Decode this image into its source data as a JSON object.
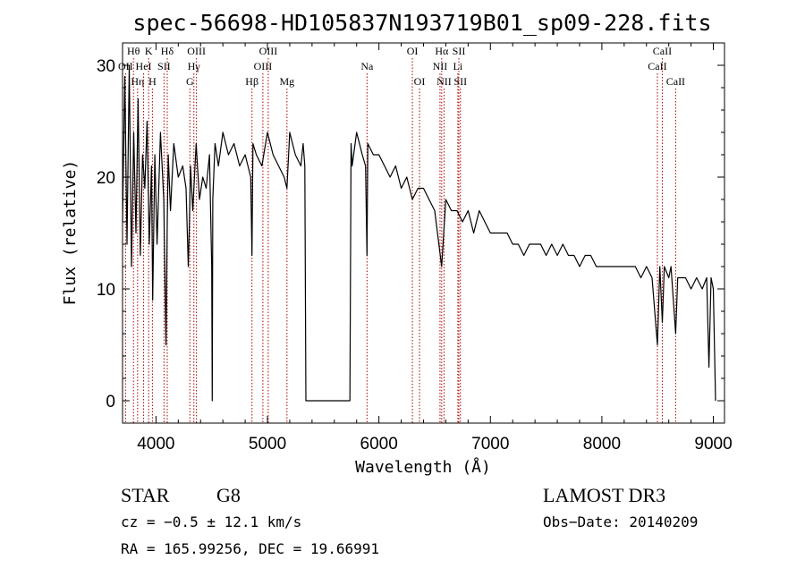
{
  "chart_data": {
    "type": "line",
    "title": "spec-56698-HD105837N193719B01_sp09-228.fits",
    "xlabel": "Wavelength (Å)",
    "ylabel": "Flux (relative)",
    "xlim": [
      3700,
      9100
    ],
    "ylim": [
      -2,
      32
    ],
    "x_ticks": [
      4000,
      5000,
      6000,
      7000,
      8000,
      9000
    ],
    "y_ticks": [
      0,
      10,
      20,
      30
    ],
    "grid": false,
    "series": [
      {
        "name": "flux",
        "x": [
          3700,
          3720,
          3740,
          3760,
          3780,
          3800,
          3820,
          3840,
          3860,
          3880,
          3900,
          3920,
          3940,
          3960,
          3970,
          3990,
          4010,
          4040,
          4070,
          4090,
          4101,
          4110,
          4130,
          4160,
          4200,
          4240,
          4270,
          4290,
          4300,
          4310,
          4330,
          4360,
          4390,
          4420,
          4450,
          4480,
          4500,
          4505,
          4510,
          4530,
          4560,
          4600,
          4650,
          4700,
          4750,
          4800,
          4850,
          4861,
          4870,
          4900,
          4950,
          5000,
          5050,
          5100,
          5150,
          5175,
          5200,
          5250,
          5300,
          5320,
          5335,
          5345,
          5500,
          5600,
          5700,
          5740,
          5750,
          5760,
          5800,
          5850,
          5880,
          5893,
          5900,
          5950,
          6000,
          6050,
          6100,
          6150,
          6200,
          6250,
          6300,
          6350,
          6400,
          6450,
          6500,
          6563,
          6600,
          6650,
          6700,
          6750,
          6800,
          6850,
          6900,
          6950,
          7000,
          7050,
          7100,
          7150,
          7200,
          7250,
          7300,
          7350,
          7400,
          7450,
          7500,
          7550,
          7600,
          7650,
          7700,
          7750,
          7800,
          7850,
          7900,
          7950,
          8000,
          8050,
          8100,
          8150,
          8200,
          8250,
          8300,
          8350,
          8400,
          8450,
          8498,
          8520,
          8542,
          8560,
          8600,
          8620,
          8662,
          8680,
          8700,
          8750,
          8800,
          8850,
          8900,
          8940,
          8960,
          8980,
          9000,
          9020
        ],
        "y": [
          16,
          29,
          14,
          30,
          12,
          24,
          15,
          27,
          13,
          22,
          19,
          25,
          14,
          21,
          9,
          22,
          14,
          24,
          18,
          5,
          16,
          22,
          17,
          23,
          20,
          21,
          19,
          12,
          16,
          21,
          17,
          23,
          18,
          20,
          19,
          22,
          12,
          0,
          18,
          23,
          21,
          24,
          22,
          23,
          21,
          22,
          20,
          13,
          23,
          22,
          21,
          24,
          22,
          21,
          20,
          19,
          24,
          22,
          21,
          23,
          21,
          0,
          0,
          0,
          0,
          0,
          23,
          21,
          24,
          22,
          21,
          13,
          23,
          22,
          22,
          21,
          20,
          21,
          19,
          20,
          18,
          19,
          19,
          18,
          17,
          12,
          18,
          17,
          17,
          16,
          17,
          15,
          17,
          16,
          15,
          15,
          15,
          15,
          14,
          14,
          13,
          14,
          14,
          14,
          13,
          14,
          13,
          14,
          13,
          13,
          12,
          13,
          13,
          12,
          12,
          12,
          12,
          12,
          12,
          12,
          12,
          11,
          12,
          11,
          5,
          12,
          7,
          12,
          11,
          12,
          6,
          11,
          11,
          11,
          10,
          11,
          10,
          11,
          3,
          11,
          10,
          0
        ]
      }
    ],
    "spectral_lines": [
      {
        "name": "OII",
        "wavelength": 3727,
        "row": 2
      },
      {
        "name": "Hθ",
        "wavelength": 3798,
        "row": 1
      },
      {
        "name": "Hη",
        "wavelength": 3835,
        "row": 3
      },
      {
        "name": "HeI",
        "wavelength": 3889,
        "row": 2
      },
      {
        "name": "K",
        "wavelength": 3934,
        "row": 1
      },
      {
        "name": "H",
        "wavelength": 3968,
        "row": 3
      },
      {
        "name": "SII",
        "wavelength": 4072,
        "row": 2
      },
      {
        "name": "Hδ",
        "wavelength": 4101,
        "row": 1
      },
      {
        "name": "OIII",
        "wavelength": 4363,
        "row": 1
      },
      {
        "name": "Hγ",
        "wavelength": 4340,
        "row": 2
      },
      {
        "name": "G",
        "wavelength": 4304,
        "row": 3
      },
      {
        "name": "Hβ",
        "wavelength": 4861,
        "row": 3
      },
      {
        "name": "OIII",
        "wavelength": 4959,
        "row": 2
      },
      {
        "name": "OIII",
        "wavelength": 5007,
        "row": 1
      },
      {
        "name": "Mg",
        "wavelength": 5175,
        "row": 3
      },
      {
        "name": "Na",
        "wavelength": 5893,
        "row": 2
      },
      {
        "name": "OI",
        "wavelength": 6300,
        "row": 1
      },
      {
        "name": "OI",
        "wavelength": 6364,
        "row": 3
      },
      {
        "name": "Hα",
        "wavelength": 6563,
        "row": 1
      },
      {
        "name": "NII",
        "wavelength": 6548,
        "row": 2
      },
      {
        "name": "NII",
        "wavelength": 6584,
        "row": 3
      },
      {
        "name": "SII",
        "wavelength": 6717,
        "row": 1
      },
      {
        "name": "Li",
        "wavelength": 6708,
        "row": 2
      },
      {
        "name": "SII",
        "wavelength": 6731,
        "row": 3
      },
      {
        "name": "CaII",
        "wavelength": 8542,
        "row": 1
      },
      {
        "name": "CaII",
        "wavelength": 8498,
        "row": 2
      },
      {
        "name": "CaII",
        "wavelength": 8662,
        "row": 3
      }
    ],
    "line_color": "#b00000",
    "series_color": "#000000"
  },
  "footer": {
    "object_class": "STAR",
    "subclass": "G8",
    "survey": "LAMOST DR3",
    "cz": "cz = −0.5 ± 12.1 km/s",
    "obs_date": "Obs−Date: 20140209",
    "coords": "RA = 165.99256, DEC =  19.66991"
  }
}
